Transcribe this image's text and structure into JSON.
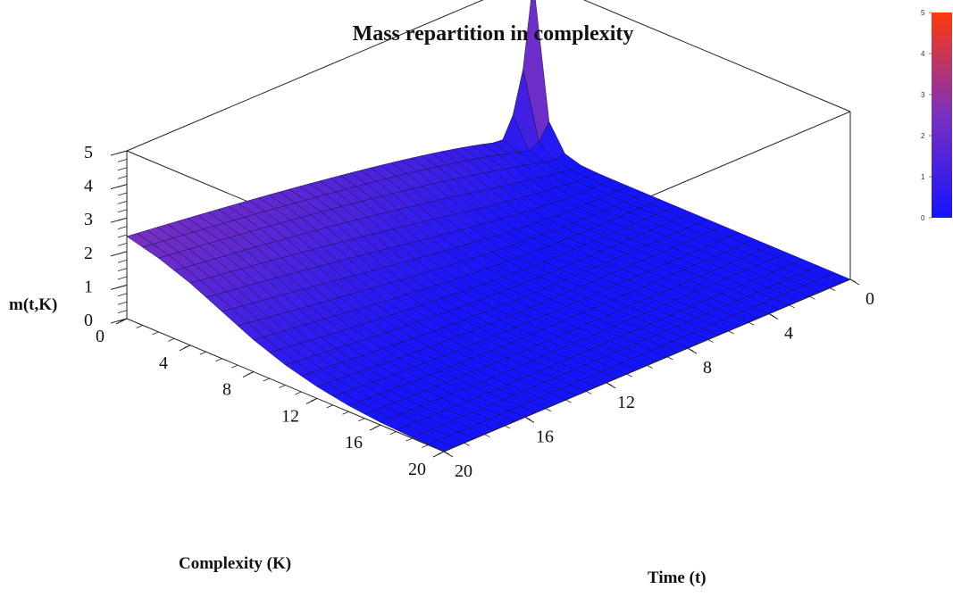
{
  "chart_data": {
    "type": "surface",
    "title": "Mass repartition in complexity",
    "zlabel": "m(t,K)",
    "xlabel": "Time (t)",
    "ylabel": "Complexity (K)",
    "time_ticks": [
      "0",
      "4",
      "8",
      "12",
      "16",
      "20"
    ],
    "complexity_ticks": [
      "0",
      "4",
      "8",
      "12",
      "16",
      "20"
    ],
    "z_ticks": [
      "0",
      "1",
      "2",
      "3",
      "4",
      "5"
    ],
    "colorbar_ticks": [
      "0",
      "1",
      "2",
      "3",
      "4",
      "5"
    ],
    "time_range": [
      0,
      20
    ],
    "complexity_range": [
      0,
      20
    ],
    "z_range": [
      0,
      5
    ],
    "colormap": [
      "#1414ff",
      "#7a30c0",
      "#ff3a08"
    ],
    "grid": false,
    "colorbar_placement": "top-right",
    "corner_values": {
      "t0_K0": 4.95,
      "t0_K20": 0.0,
      "t20_K0": 2.45,
      "t20_K20": 0.0
    },
    "profile_at_t20": {
      "K": [
        0,
        2,
        4,
        6,
        8,
        10,
        12,
        14,
        16,
        18,
        20
      ],
      "m": [
        2.45,
        2.2,
        1.85,
        1.4,
        0.95,
        0.6,
        0.35,
        0.18,
        0.08,
        0.03,
        0.0
      ]
    }
  }
}
